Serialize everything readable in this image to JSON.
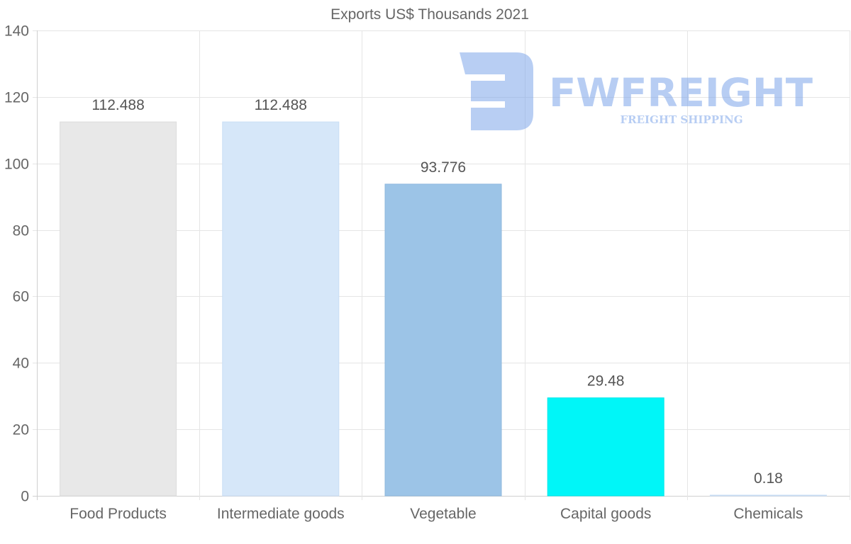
{
  "chart_data": {
    "type": "bar",
    "title": "Exports US$ Thousands 2021",
    "xlabel": "",
    "ylabel": "",
    "categories": [
      "Food Products",
      "Intermediate goods",
      "Vegetable",
      "Capital goods",
      "Chemicals"
    ],
    "values": [
      112.488,
      112.488,
      93.776,
      29.48,
      0.18
    ],
    "value_labels": [
      "112.488",
      "112.488",
      "93.776",
      "29.48",
      "0.18"
    ],
    "colors": [
      "#e8e8e8",
      "#d6e7f9",
      "#9cc4e7",
      "#00f6f8",
      "#d6e7f9"
    ],
    "border_colors": [
      "#dcdcdc",
      "#c9def5",
      "#8fb8de",
      "#00e8ea",
      "#c9def5"
    ],
    "ylim": [
      0,
      140
    ],
    "yticks": [
      0,
      20,
      40,
      60,
      80,
      100,
      120,
      140
    ],
    "grid": true,
    "legend": "none"
  },
  "watermark": {
    "brand": "FWFREIGHT",
    "tagline": "FREIGHT SHIPPING",
    "color": "#7ea6ea"
  }
}
